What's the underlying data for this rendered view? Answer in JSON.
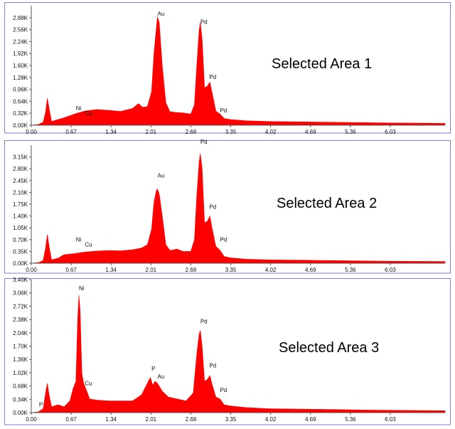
{
  "colors": {
    "spectrum": "#ff0000",
    "frame": "#7f7fd6",
    "axis": "#555555",
    "text": "#111111"
  },
  "chart_data": [
    {
      "type": "area",
      "title": "Selected Area 1",
      "xlim": [
        0.0,
        6.95
      ],
      "ylim": [
        0,
        3.2
      ],
      "x_ticks": [
        "0.00",
        "0.67",
        "1.34",
        "2.01",
        "2.68",
        "3.35",
        "4.02",
        "4.69",
        "5.36",
        "6.03"
      ],
      "y_ticks": [
        "0.00K",
        "0.32K",
        "0.64K",
        "0.96K",
        "1.28K",
        "1.60K",
        "1.92K",
        "2.24K",
        "2.56K",
        "2.88K"
      ],
      "y_tick_values": [
        0,
        0.32,
        0.64,
        0.96,
        1.28,
        1.6,
        1.92,
        2.24,
        2.56,
        2.88
      ],
      "peaks": [
        {
          "label": "Ni",
          "x": 0.75,
          "y": 0.34
        },
        {
          "label": "Cu",
          "x": 0.9,
          "y": 0.21
        },
        {
          "label": "Au",
          "x": 2.12,
          "y": 2.88
        },
        {
          "label": "Pd",
          "x": 2.84,
          "y": 2.66
        },
        {
          "label": "Pd",
          "x": 2.99,
          "y": 1.18
        },
        {
          "label": "Pd",
          "x": 3.17,
          "y": 0.29
        }
      ],
      "spectrum": [
        [
          0.0,
          0
        ],
        [
          0.12,
          0.02
        ],
        [
          0.2,
          0.08
        ],
        [
          0.24,
          0.35
        ],
        [
          0.27,
          0.72
        ],
        [
          0.3,
          0.45
        ],
        [
          0.34,
          0.1
        ],
        [
          0.42,
          0.14
        ],
        [
          0.55,
          0.2
        ],
        [
          0.75,
          0.31
        ],
        [
          0.9,
          0.38
        ],
        [
          1.1,
          0.42
        ],
        [
          1.3,
          0.4
        ],
        [
          1.5,
          0.37
        ],
        [
          1.7,
          0.45
        ],
        [
          1.8,
          0.58
        ],
        [
          1.87,
          0.48
        ],
        [
          1.95,
          0.5
        ],
        [
          2.02,
          0.9
        ],
        [
          2.06,
          1.9
        ],
        [
          2.1,
          2.6
        ],
        [
          2.12,
          2.9
        ],
        [
          2.15,
          2.75
        ],
        [
          2.2,
          1.6
        ],
        [
          2.26,
          0.6
        ],
        [
          2.33,
          0.36
        ],
        [
          2.45,
          0.34
        ],
        [
          2.55,
          0.33
        ],
        [
          2.68,
          0.3
        ],
        [
          2.74,
          0.55
        ],
        [
          2.78,
          1.6
        ],
        [
          2.82,
          2.55
        ],
        [
          2.84,
          2.75
        ],
        [
          2.87,
          2.3
        ],
        [
          2.91,
          1.0
        ],
        [
          2.96,
          1.05
        ],
        [
          3.0,
          1.15
        ],
        [
          3.04,
          0.85
        ],
        [
          3.1,
          0.38
        ],
        [
          3.17,
          0.3
        ],
        [
          3.24,
          0.18
        ],
        [
          3.35,
          0.15
        ],
        [
          3.6,
          0.12
        ],
        [
          4.0,
          0.1
        ],
        [
          4.5,
          0.09
        ],
        [
          5.0,
          0.08
        ],
        [
          5.5,
          0.07
        ],
        [
          6.0,
          0.06
        ],
        [
          6.5,
          0.055
        ],
        [
          6.95,
          0.05
        ]
      ]
    },
    {
      "type": "area",
      "title": "Selected Area 2",
      "xlim": [
        0.0,
        6.95
      ],
      "ylim": [
        0,
        3.5
      ],
      "x_ticks": [
        "0.00",
        "0.67",
        "1.34",
        "2.01",
        "2.68",
        "3.35",
        "4.02",
        "4.69",
        "5.36",
        "6.03"
      ],
      "y_ticks": [
        "0.00K",
        "0.35K",
        "0.70K",
        "1.05K",
        "1.40K",
        "1.75K",
        "2.10K",
        "2.45K",
        "2.80K",
        "3.15K"
      ],
      "y_tick_values": [
        0,
        0.35,
        0.7,
        1.05,
        1.4,
        1.75,
        2.1,
        2.45,
        2.8,
        3.15
      ],
      "peaks": [
        {
          "label": "Ni",
          "x": 0.75,
          "y": 0.58
        },
        {
          "label": "Cu",
          "x": 0.9,
          "y": 0.43
        },
        {
          "label": "Au",
          "x": 2.12,
          "y": 2.48
        },
        {
          "label": "Pd",
          "x": 2.84,
          "y": 3.48
        },
        {
          "label": "Pd",
          "x": 2.99,
          "y": 1.55
        },
        {
          "label": "Pd",
          "x": 3.17,
          "y": 0.58
        }
      ],
      "spectrum": [
        [
          0.0,
          0
        ],
        [
          0.12,
          0.02
        ],
        [
          0.2,
          0.08
        ],
        [
          0.24,
          0.45
        ],
        [
          0.27,
          0.85
        ],
        [
          0.3,
          0.5
        ],
        [
          0.34,
          0.1
        ],
        [
          0.45,
          0.15
        ],
        [
          0.55,
          0.25
        ],
        [
          0.7,
          0.28
        ],
        [
          0.9,
          0.33
        ],
        [
          1.1,
          0.36
        ],
        [
          1.3,
          0.38
        ],
        [
          1.5,
          0.37
        ],
        [
          1.7,
          0.4
        ],
        [
          1.85,
          0.45
        ],
        [
          1.95,
          0.55
        ],
        [
          2.02,
          1.0
        ],
        [
          2.06,
          1.8
        ],
        [
          2.1,
          2.15
        ],
        [
          2.12,
          2.2
        ],
        [
          2.15,
          2.05
        ],
        [
          2.2,
          1.4
        ],
        [
          2.26,
          0.55
        ],
        [
          2.33,
          0.38
        ],
        [
          2.45,
          0.42
        ],
        [
          2.55,
          0.35
        ],
        [
          2.68,
          0.35
        ],
        [
          2.74,
          0.7
        ],
        [
          2.78,
          2.0
        ],
        [
          2.82,
          3.0
        ],
        [
          2.84,
          3.25
        ],
        [
          2.87,
          2.8
        ],
        [
          2.91,
          1.2
        ],
        [
          2.96,
          1.25
        ],
        [
          3.0,
          1.4
        ],
        [
          3.04,
          1.0
        ],
        [
          3.1,
          0.5
        ],
        [
          3.17,
          0.38
        ],
        [
          3.24,
          0.2
        ],
        [
          3.35,
          0.16
        ],
        [
          3.6,
          0.12
        ],
        [
          4.0,
          0.1
        ],
        [
          4.5,
          0.09
        ],
        [
          5.0,
          0.08
        ],
        [
          5.5,
          0.07
        ],
        [
          6.0,
          0.06
        ],
        [
          6.5,
          0.055
        ],
        [
          6.95,
          0.05
        ]
      ]
    },
    {
      "type": "area",
      "title": "Selected Area 3",
      "xlim": [
        0.0,
        6.95
      ],
      "ylim": [
        0,
        3.4
      ],
      "x_ticks": [
        "0.00",
        "0.67",
        "1.34",
        "2.01",
        "2.68",
        "3.35",
        "4.02",
        "4.69",
        "5.36",
        "6.03"
      ],
      "y_ticks": [
        "0.00K",
        "0.34K",
        "0.68K",
        "1.02K",
        "1.36K",
        "1.70K",
        "2.04K",
        "2.38K",
        "2.72K",
        "3.06K",
        "3.40K"
      ],
      "y_tick_values": [
        0,
        0.34,
        0.68,
        1.02,
        1.36,
        1.7,
        2.04,
        2.38,
        2.72,
        3.06,
        3.4
      ],
      "peaks": [
        {
          "label": "P",
          "x": 0.13,
          "y": 0.1
        },
        {
          "label": "Ni",
          "x": 0.8,
          "y": 3.07
        },
        {
          "label": "Cu",
          "x": 0.9,
          "y": 0.65
        },
        {
          "label": "P",
          "x": 2.02,
          "y": 1.02
        },
        {
          "label": "Au",
          "x": 2.12,
          "y": 0.82
        },
        {
          "label": "Pd",
          "x": 2.84,
          "y": 2.23
        },
        {
          "label": "Pd",
          "x": 2.99,
          "y": 1.1
        },
        {
          "label": "Pd",
          "x": 3.17,
          "y": 0.47
        }
      ],
      "spectrum": [
        [
          0.0,
          0
        ],
        [
          0.12,
          0.02
        ],
        [
          0.2,
          0.1
        ],
        [
          0.24,
          0.5
        ],
        [
          0.27,
          0.75
        ],
        [
          0.3,
          0.45
        ],
        [
          0.34,
          0.15
        ],
        [
          0.45,
          0.2
        ],
        [
          0.55,
          0.15
        ],
        [
          0.65,
          0.3
        ],
        [
          0.7,
          0.6
        ],
        [
          0.75,
          0.8
        ],
        [
          0.78,
          2.4
        ],
        [
          0.8,
          3.0
        ],
        [
          0.82,
          2.6
        ],
        [
          0.85,
          1.0
        ],
        [
          0.88,
          0.75
        ],
        [
          0.92,
          0.6
        ],
        [
          0.98,
          0.35
        ],
        [
          1.1,
          0.32
        ],
        [
          1.3,
          0.3
        ],
        [
          1.5,
          0.3
        ],
        [
          1.7,
          0.3
        ],
        [
          1.85,
          0.45
        ],
        [
          1.95,
          0.75
        ],
        [
          2.0,
          0.9
        ],
        [
          2.04,
          0.7
        ],
        [
          2.08,
          0.8
        ],
        [
          2.12,
          0.75
        ],
        [
          2.2,
          0.55
        ],
        [
          2.3,
          0.4
        ],
        [
          2.45,
          0.35
        ],
        [
          2.6,
          0.3
        ],
        [
          2.72,
          0.5
        ],
        [
          2.78,
          1.5
        ],
        [
          2.82,
          2.0
        ],
        [
          2.84,
          2.1
        ],
        [
          2.87,
          1.7
        ],
        [
          2.91,
          0.8
        ],
        [
          2.96,
          0.85
        ],
        [
          3.0,
          0.95
        ],
        [
          3.04,
          0.7
        ],
        [
          3.1,
          0.4
        ],
        [
          3.17,
          0.35
        ],
        [
          3.24,
          0.2
        ],
        [
          3.35,
          0.17
        ],
        [
          3.6,
          0.13
        ],
        [
          4.0,
          0.1
        ],
        [
          4.5,
          0.09
        ],
        [
          5.0,
          0.08
        ],
        [
          5.5,
          0.07
        ],
        [
          6.0,
          0.06
        ],
        [
          6.5,
          0.055
        ],
        [
          6.95,
          0.05
        ]
      ]
    }
  ]
}
